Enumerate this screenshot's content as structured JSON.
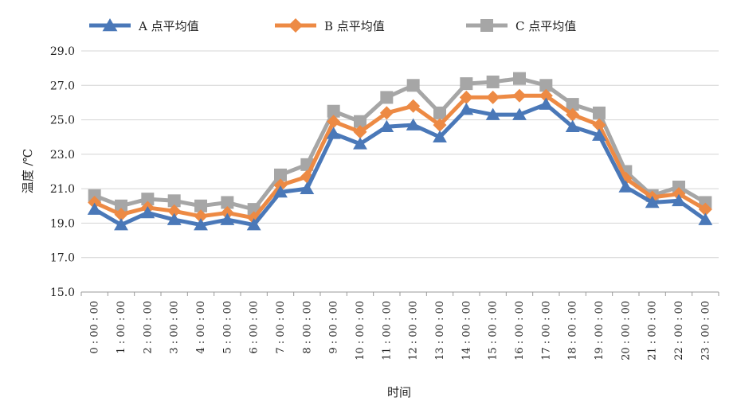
{
  "chart_data": {
    "type": "line",
    "title": "",
    "xlabel": "时间",
    "ylabel": "温度 /℃",
    "ylim": [
      15.0,
      29.0
    ],
    "yticks": [
      "15.0",
      "17.0",
      "19.0",
      "21.0",
      "23.0",
      "25.0",
      "27.0",
      "29.0"
    ],
    "grid": true,
    "legend_position": "top",
    "categories": [
      "0 : 00 : 00",
      "1 : 00 : 00",
      "2 : 00 : 00",
      "3 : 00 : 00",
      "4 : 00 : 00",
      "5 : 00 : 00",
      "6 : 00 : 00",
      "7 : 00 : 00",
      "8 : 00 : 00",
      "9 : 00 : 00",
      "10 : 00 : 00",
      "11 : 00 : 00",
      "12 : 00 : 00",
      "13 : 00 : 00",
      "14 : 00 : 00",
      "15 : 00 : 00",
      "16 : 00 : 00",
      "17 : 00 : 00",
      "18 : 00 : 00",
      "19 : 00 : 00",
      "20 : 00 : 00",
      "21 : 00 : 00",
      "22 : 00 : 00",
      "23 : 00 : 00"
    ],
    "series": [
      {
        "name": "A 点平均值",
        "color": "#4a78b8",
        "marker": "triangle",
        "values": [
          19.8,
          18.9,
          19.6,
          19.2,
          18.9,
          19.2,
          18.9,
          20.8,
          21.0,
          24.2,
          23.6,
          24.6,
          24.7,
          24.0,
          25.6,
          25.3,
          25.3,
          25.9,
          24.6,
          24.1,
          21.1,
          20.2,
          20.3,
          19.2
        ]
      },
      {
        "name": "B 点平均值",
        "color": "#ed8a44",
        "marker": "diamond",
        "values": [
          20.2,
          19.5,
          19.9,
          19.7,
          19.4,
          19.6,
          19.3,
          21.2,
          21.7,
          24.9,
          24.3,
          25.4,
          25.8,
          24.7,
          26.3,
          26.3,
          26.4,
          26.4,
          25.3,
          24.7,
          21.6,
          20.5,
          20.7,
          19.8
        ]
      },
      {
        "name": "C 点平均值",
        "color": "#a6a6a6",
        "marker": "square",
        "values": [
          20.6,
          20.0,
          20.4,
          20.3,
          20.0,
          20.2,
          19.8,
          21.8,
          22.4,
          25.5,
          24.9,
          26.3,
          27.0,
          25.4,
          27.1,
          27.2,
          27.4,
          27.0,
          25.9,
          25.4,
          22.0,
          20.6,
          21.1,
          20.2
        ]
      }
    ]
  }
}
